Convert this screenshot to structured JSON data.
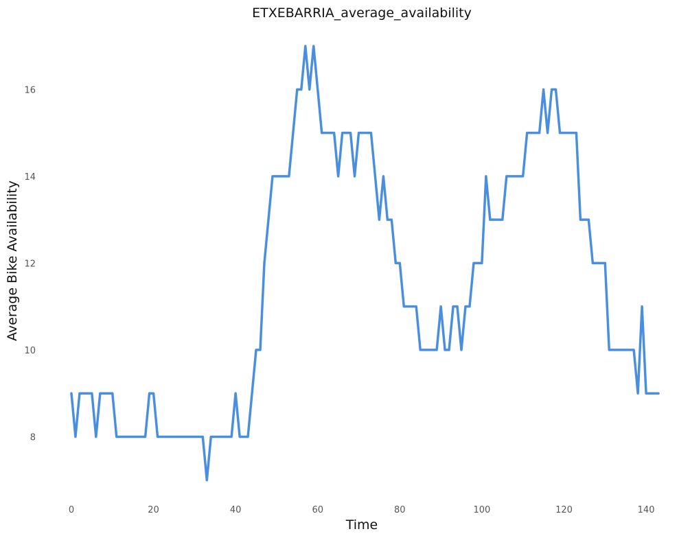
{
  "chart_data": {
    "type": "line",
    "title": "ETXEBARRIA_average_availability",
    "xlabel": "Time",
    "ylabel": "Average Bike Availability",
    "xlim": [
      -2,
      143.5
    ],
    "ylim": [
      6.6,
      17.35
    ],
    "xticks": [
      0,
      20,
      40,
      60,
      80,
      100,
      120,
      140
    ],
    "yticks": [
      8,
      10,
      12,
      14,
      16
    ],
    "grid": false,
    "legend": "none",
    "line_color": "#4a8fdf",
    "x": [
      0,
      1,
      2,
      3,
      4,
      5,
      6,
      7,
      8,
      9,
      10,
      11,
      12,
      13,
      14,
      15,
      16,
      17,
      18,
      19,
      20,
      21,
      22,
      23,
      24,
      25,
      26,
      27,
      28,
      29,
      30,
      31,
      32,
      33,
      34,
      35,
      36,
      37,
      38,
      39,
      40,
      41,
      42,
      43,
      44,
      45,
      46,
      47,
      48,
      49,
      50,
      51,
      52,
      53,
      54,
      55,
      56,
      57,
      58,
      59,
      60,
      61,
      62,
      63,
      64,
      65,
      66,
      67,
      68,
      69,
      70,
      71,
      72,
      73,
      74,
      75,
      76,
      77,
      78,
      79,
      80,
      81,
      82,
      83,
      84,
      85,
      86,
      87,
      88,
      89,
      90,
      91,
      92,
      93,
      94,
      95,
      96,
      97,
      98,
      99,
      100,
      101,
      102,
      103,
      104,
      105,
      106,
      107,
      108,
      109,
      110,
      111,
      112,
      113,
      114,
      115,
      116,
      117,
      118,
      119,
      120,
      121,
      122,
      123,
      124,
      125,
      126,
      127,
      128,
      129,
      130,
      131,
      132,
      133,
      134,
      135,
      136,
      137,
      138,
      139,
      140,
      141,
      142,
      143
    ],
    "values": [
      9,
      8,
      9,
      9,
      9,
      9,
      8,
      9,
      9,
      9,
      9,
      8,
      8,
      8,
      8,
      8,
      8,
      8,
      8,
      9,
      9,
      8,
      8,
      8,
      8,
      8,
      8,
      8,
      8,
      8,
      8,
      8,
      8,
      7,
      8,
      8,
      8,
      8,
      8,
      8,
      9,
      8,
      8,
      8,
      9,
      10,
      10,
      12,
      13,
      14,
      14,
      14,
      14,
      14,
      15,
      16,
      16,
      17,
      16,
      17,
      16,
      15,
      15,
      15,
      15,
      14,
      15,
      15,
      15,
      14,
      15,
      15,
      15,
      15,
      14,
      13,
      14,
      13,
      13,
      12,
      12,
      11,
      11,
      11,
      11,
      10,
      10,
      10,
      10,
      10,
      11,
      10,
      10,
      11,
      11,
      10,
      11,
      11,
      12,
      12,
      12,
      14,
      13,
      13,
      13,
      13,
      14,
      14,
      14,
      14,
      14,
      15,
      15,
      15,
      15,
      16,
      15,
      16,
      16,
      15,
      15,
      15,
      15,
      15,
      13,
      13,
      13,
      12,
      12,
      12,
      12,
      10,
      10,
      10,
      10,
      10,
      10,
      10,
      9,
      11,
      9,
      9,
      9,
      9
    ]
  }
}
